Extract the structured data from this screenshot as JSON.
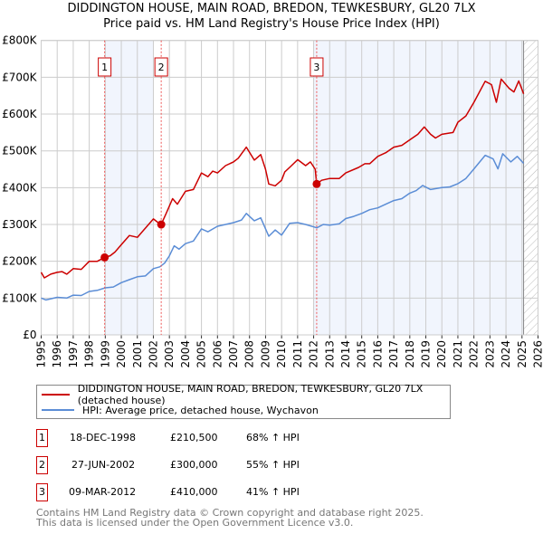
{
  "title_line1": "DIDDINGTON HOUSE, MAIN ROAD, BREDON, TEWKESBURY, GL20 7LX",
  "title_line2": "Price paid vs. HM Land Registry's House Price Index (HPI)",
  "chart_data": {
    "type": "line",
    "xlim": [
      1995,
      2026
    ],
    "ylim": [
      0,
      800000
    ],
    "yticks": [
      {
        "v": 0,
        "label": "£0"
      },
      {
        "v": 100000,
        "label": "£100K"
      },
      {
        "v": 200000,
        "label": "£200K"
      },
      {
        "v": 300000,
        "label": "£300K"
      },
      {
        "v": 400000,
        "label": "£400K"
      },
      {
        "v": 500000,
        "label": "£500K"
      },
      {
        "v": 600000,
        "label": "£600K"
      },
      {
        "v": 700000,
        "label": "£700K"
      },
      {
        "v": 800000,
        "label": "£800K"
      }
    ],
    "xticks": [
      "1995",
      "1996",
      "1997",
      "1998",
      "1999",
      "2000",
      "2001",
      "2002",
      "2003",
      "2004",
      "2005",
      "2006",
      "2007",
      "2008",
      "2009",
      "2010",
      "2011",
      "2012",
      "2013",
      "2014",
      "2015",
      "2016",
      "2017",
      "2018",
      "2019",
      "2020",
      "2021",
      "2022",
      "2023",
      "2024",
      "2025",
      "2026"
    ],
    "grid": true,
    "shaded_ranges": [
      [
        1999.0,
        2002.0
      ],
      [
        2012.0,
        2025.1
      ]
    ],
    "forecast_hatch_from": 2025.1,
    "series": [
      {
        "name": "DIDDINGTON HOUSE, MAIN ROAD, BREDON, TEWKESBURY, GL20 7LX (detached house)",
        "color": "#cc0000",
        "x": [
          1995,
          1995.2,
          1995.6,
          1996,
          1996.3,
          1996.6,
          1997,
          1997.5,
          1998,
          1998.5,
          1998.96,
          1999.3,
          1999.6,
          2000,
          2000.5,
          2001,
          2001.5,
          2002,
          2002.3,
          2002.49,
          2002.8,
          2003.2,
          2003.5,
          2004,
          2004.5,
          2005,
          2005.4,
          2005.7,
          2006,
          2006.5,
          2007,
          2007.3,
          2007.8,
          2008.3,
          2008.7,
          2009,
          2009.2,
          2009.6,
          2010,
          2010.2,
          2010.5,
          2011,
          2011.5,
          2011.8,
          2012.1,
          2012.19,
          2012.5,
          2013,
          2013.6,
          2014,
          2014.8,
          2015.2,
          2015.5,
          2016,
          2016.5,
          2017,
          2017.5,
          2018,
          2018.5,
          2018.9,
          2019.3,
          2019.6,
          2020,
          2020.7,
          2021,
          2021.5,
          2022,
          2022.7,
          2023.1,
          2023.4,
          2023.7,
          2024.2,
          2024.5,
          2024.8,
          2025.1
        ],
        "y": [
          170000,
          155000,
          165000,
          170000,
          172000,
          165000,
          180000,
          178000,
          200000,
          200000,
          210500,
          215000,
          225000,
          245000,
          270000,
          265000,
          290000,
          315000,
          305000,
          300000,
          330000,
          370000,
          355000,
          390000,
          395000,
          440000,
          430000,
          445000,
          440000,
          460000,
          470000,
          480000,
          510000,
          475000,
          490000,
          450000,
          410000,
          405000,
          420000,
          443000,
          455000,
          476000,
          460000,
          470000,
          450000,
          410000,
          420000,
          425000,
          425000,
          440000,
          455000,
          465000,
          465000,
          485000,
          495000,
          510000,
          515000,
          530000,
          545000,
          565000,
          545000,
          535000,
          545000,
          550000,
          578000,
          595000,
          632000,
          689000,
          680000,
          632000,
          695000,
          670000,
          660000,
          690000,
          655000
        ]
      },
      {
        "name": "HPI: Average price, detached house, Wychavon",
        "color": "#5b8dd6",
        "x": [
          1995,
          1995.3,
          1996,
          1996.6,
          1997,
          1997.5,
          1998,
          1998.5,
          1999,
          1999.5,
          2000,
          2000.5,
          2001,
          2001.5,
          2002,
          2002.4,
          2002.7,
          2003,
          2003.3,
          2003.6,
          2004,
          2004.5,
          2005,
          2005.4,
          2006,
          2006.5,
          2007,
          2007.5,
          2007.8,
          2008.3,
          2008.7,
          2009.2,
          2009.6,
          2010,
          2010.5,
          2011,
          2011.5,
          2012.2,
          2012.6,
          2013,
          2013.6,
          2014,
          2014.5,
          2015,
          2015.5,
          2016,
          2016.5,
          2017,
          2017.5,
          2018,
          2018.4,
          2018.8,
          2019.3,
          2020,
          2020.5,
          2021,
          2021.5,
          2022,
          2022.7,
          2023.2,
          2023.5,
          2023.8,
          2024.3,
          2024.7,
          2025.1
        ],
        "y": [
          100000,
          95000,
          102000,
          100000,
          108000,
          107000,
          118000,
          121000,
          128000,
          130000,
          142000,
          150000,
          158000,
          160000,
          180000,
          185000,
          195000,
          215000,
          242000,
          233000,
          248000,
          255000,
          288000,
          280000,
          295000,
          300000,
          305000,
          312000,
          330000,
          310000,
          318000,
          268000,
          285000,
          271000,
          303000,
          305000,
          300000,
          291000,
          300000,
          298000,
          302000,
          316000,
          322000,
          330000,
          340000,
          345000,
          355000,
          365000,
          370000,
          385000,
          392000,
          406000,
          395000,
          400000,
          402000,
          411000,
          425000,
          451000,
          488000,
          478000,
          451000,
          492000,
          470000,
          485000,
          466000
        ]
      }
    ],
    "sales": [
      {
        "n": "1",
        "x": 1998.96,
        "y": 210500
      },
      {
        "n": "2",
        "x": 2002.49,
        "y": 300000
      },
      {
        "n": "3",
        "x": 2012.19,
        "y": 410000
      }
    ]
  },
  "legend": {
    "red_label": "DIDDINGTON HOUSE, MAIN ROAD, BREDON, TEWKESBURY, GL20 7LX (detached house)",
    "blue_label": "HPI: Average price, detached house, Wychavon"
  },
  "transactions": [
    {
      "n": "1",
      "date": "18-DEC-1998",
      "price": "£210,500",
      "hpi": "68% ↑ HPI"
    },
    {
      "n": "2",
      "date": "27-JUN-2002",
      "price": "£300,000",
      "hpi": "55% ↑ HPI"
    },
    {
      "n": "3",
      "date": "09-MAR-2012",
      "price": "£410,000",
      "hpi": "41% ↑ HPI"
    }
  ],
  "footer_line1": "Contains HM Land Registry data © Crown copyright and database right 2025.",
  "footer_line2": "This data is licensed under the Open Government Licence v3.0."
}
